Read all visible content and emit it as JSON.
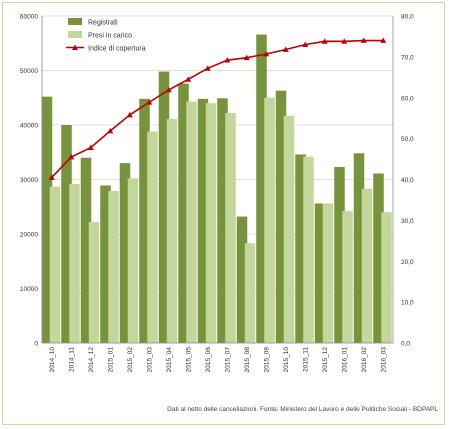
{
  "chart_data": {
    "type": "bar",
    "categories": [
      "2014_10",
      "2014_11",
      "2014_12",
      "2015_01",
      "2015_02",
      "2015_03",
      "2015_04",
      "2015_05",
      "2015_06",
      "2015_07",
      "2015_08",
      "2015_09",
      "2015_10",
      "2015_11",
      "2015_12",
      "2016_01",
      "2016_02",
      "2016_03"
    ],
    "series": [
      {
        "name": "Registrati",
        "type": "bar",
        "axis": "left",
        "color": "#77933c",
        "values": [
          45200,
          40000,
          34000,
          28900,
          33000,
          44800,
          49800,
          47600,
          44800,
          44900,
          23200,
          56600,
          46300,
          34600,
          25600,
          32300,
          34800,
          31100
        ]
      },
      {
        "name": "Presi in carico",
        "type": "bar",
        "axis": "left",
        "color": "#c3d69b",
        "values": [
          28700,
          29200,
          22200,
          27900,
          30200,
          38800,
          41100,
          44300,
          44000,
          42200,
          18300,
          45000,
          41700,
          34200,
          25600,
          24200,
          28300,
          24000
        ]
      },
      {
        "name": "Indice di copertura",
        "type": "line",
        "axis": "right",
        "color": "#c00000",
        "values": [
          40.5,
          45.5,
          47.8,
          51.9,
          55.8,
          58.9,
          61.9,
          64.5,
          67.2,
          69.2,
          69.8,
          70.7,
          71.8,
          73.0,
          73.8,
          73.8,
          74.0,
          74.0
        ]
      }
    ],
    "y_left": {
      "min": 0,
      "max": 60000,
      "ticks": [
        "0",
        "10000",
        "20000",
        "30000",
        "40000",
        "50000",
        "60000"
      ]
    },
    "y_right": {
      "min": 0,
      "max": 80,
      "ticks": [
        "0,0",
        "10,0",
        "20,0",
        "30,0",
        "40,0",
        "50,0",
        "60,0",
        "70,0",
        "80,0"
      ]
    },
    "grid": true,
    "legend_position": "top-left"
  },
  "source_note": "Dati al netto delle cancellazioni. Fonte: Ministero del Lavoro e delle Politiche Sociali - BDPAPL"
}
